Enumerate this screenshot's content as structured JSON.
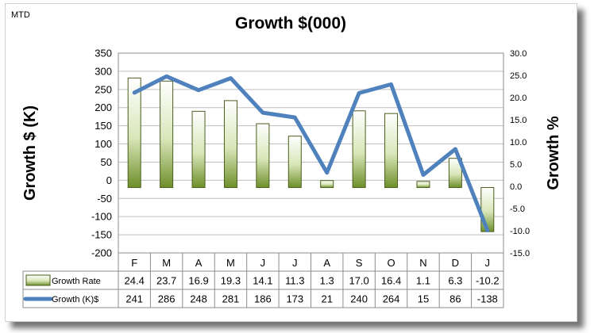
{
  "header": {
    "corner_label": "MTD"
  },
  "chart_data": {
    "type": "bar",
    "title": "Growth $(000)",
    "ylabel": "Growth $ (K)",
    "y2label": "Growth %",
    "ylim": [
      -200,
      350
    ],
    "yticks": [
      350,
      300,
      250,
      200,
      150,
      100,
      50,
      0,
      -50,
      -100,
      -150,
      -200
    ],
    "y2lim": [
      -15,
      30
    ],
    "y2ticks": [
      "30.0",
      "25.0",
      "20.0",
      "15.0",
      "10.0",
      "5.0",
      "0.0",
      "-5.0",
      "-10.0",
      "-15.0"
    ],
    "categories": [
      "F",
      "M",
      "A",
      "M",
      "J",
      "J",
      "A",
      "S",
      "O",
      "N",
      "D",
      "J"
    ],
    "grid": true,
    "legend": "table-below",
    "series": [
      {
        "name": "Growth Rate",
        "kind": "bar",
        "axis": "right",
        "values": [
          24.4,
          23.7,
          16.9,
          19.3,
          14.1,
          11.3,
          1.3,
          17.0,
          16.4,
          1.1,
          6.3,
          -10.2
        ],
        "labels": [
          "24.4",
          "23.7",
          "16.9",
          "19.3",
          "14.1",
          "11.3",
          "1.3",
          "17.0",
          "16.4",
          "1.1",
          "6.3",
          "-10.2"
        ],
        "color": "#9bbb59"
      },
      {
        "name": "Growth (K)$",
        "kind": "line",
        "axis": "left",
        "values": [
          241,
          286,
          248,
          281,
          186,
          173,
          21,
          240,
          264,
          15,
          86,
          -138
        ],
        "labels": [
          "241",
          "286",
          "248",
          "281",
          "186",
          "173",
          "21",
          "240",
          "264",
          "15",
          "86",
          "-138"
        ],
        "color": "#4f81bd"
      }
    ]
  }
}
